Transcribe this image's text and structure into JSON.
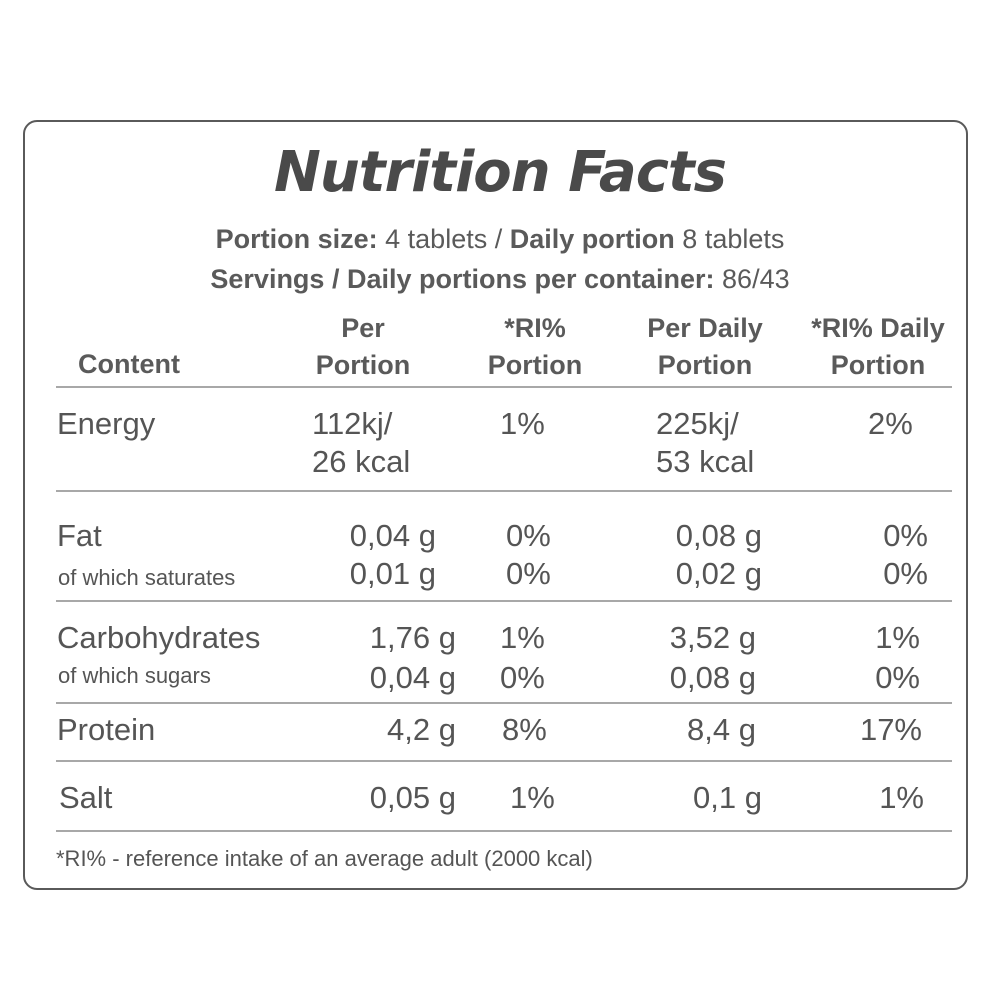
{
  "title": "Nutrition Facts",
  "portion_line": {
    "portion_size_label": "Portion size:",
    "portion_size_value": "4 tablets",
    "separator": "/",
    "daily_portion_label": "Daily portion",
    "daily_portion_value": "8 tablets"
  },
  "servings_line": {
    "label": "Servings / Daily portions per container:",
    "value": "86/43"
  },
  "columns": {
    "content": "Content",
    "per_portion": [
      "Per",
      "Portion"
    ],
    "ri_portion": [
      "*RI%",
      "Portion"
    ],
    "per_daily": [
      "Per Daily",
      "Portion"
    ],
    "ri_daily": [
      "*RI% Daily",
      "Portion"
    ]
  },
  "rows": {
    "energy": {
      "label": "Energy",
      "per_portion": [
        "112kj/",
        "26 kcal"
      ],
      "ri_portion": "1%",
      "per_daily": [
        "225kj/",
        "53 kcal"
      ],
      "ri_daily": "2%"
    },
    "fat": {
      "label": "Fat",
      "per_portion": "0,04 g",
      "ri_portion": "0%",
      "per_daily": "0,08 g",
      "ri_daily": "0%"
    },
    "saturates": {
      "label": "of which saturates",
      "per_portion": "0,01 g",
      "ri_portion": "0%",
      "per_daily": "0,02 g",
      "ri_daily": "0%"
    },
    "carbohydrates": {
      "label": "Carbohydrates",
      "per_portion": "1,76 g",
      "ri_portion": "1%",
      "per_daily": "3,52 g",
      "ri_daily": "1%"
    },
    "sugars": {
      "label": "of which sugars",
      "per_portion": "0,04 g",
      "ri_portion": "0%",
      "per_daily": "0,08 g",
      "ri_daily": "0%"
    },
    "protein": {
      "label": "Protein",
      "per_portion": "4,2 g",
      "ri_portion": "8%",
      "per_daily": "8,4 g",
      "ri_daily": "17%"
    },
    "salt": {
      "label": "Salt",
      "per_portion": "0,05 g",
      "ri_portion": "1%",
      "per_daily": "0,1 g",
      "ri_daily": "1%"
    }
  },
  "footnote": "*RI% - reference intake of an average adult (2000 kcal)"
}
